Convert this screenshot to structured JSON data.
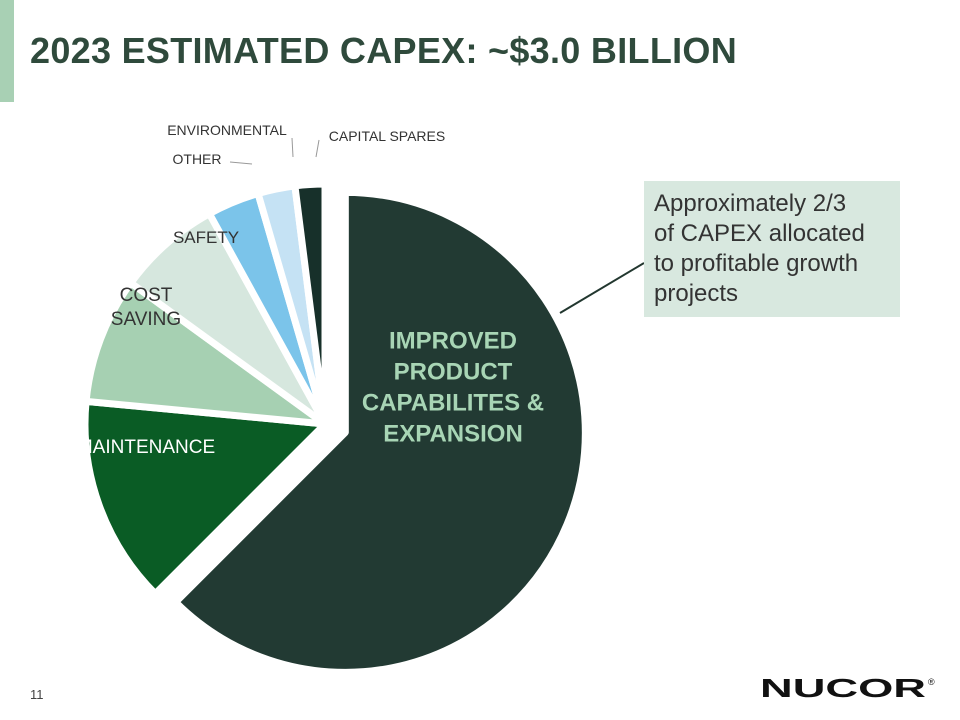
{
  "slide": {
    "title": "2023 ESTIMATED CAPEX:  ~$3.0 BILLION",
    "page_number": "11",
    "brand_name": "NUCOR",
    "brand_mark": "®",
    "colors": {
      "title": "#2f4a3c",
      "accent_bar": "#a8d0b4",
      "callout_bg": "#d8e8df",
      "callout_leader": "#22372f"
    }
  },
  "callout": {
    "lines": [
      "Approximately 2/3",
      "of CAPEX allocated",
      "to profitable growth",
      "projects"
    ]
  },
  "chart_data": {
    "type": "pie",
    "unit": "percent of total CAPEX (estimated)",
    "slices": [
      {
        "label": "IMPROVED PRODUCT CAPABILITES & EXPANSION",
        "label_lines": [
          "IMPROVED",
          "PRODUCT",
          "CAPABILITES &",
          "EXPANSION"
        ],
        "value": 62.5,
        "color": "#223a33",
        "label_color": "#a8d5b5",
        "exploded": true
      },
      {
        "label": "MAINTENANCE",
        "label_lines": [
          "MAINTENANCE"
        ],
        "value": 14.0,
        "color": "#0a5c25",
        "label_color": "#ffffff",
        "exploded": false
      },
      {
        "label": "COST SAVING",
        "label_lines": [
          "COST",
          "SAVING"
        ],
        "value": 8.5,
        "color": "#a6d0b2",
        "label_color": "#333333",
        "exploded": false
      },
      {
        "label": "SAFETY",
        "label_lines": [
          "SAFETY"
        ],
        "value": 7.0,
        "color": "#d6e7de",
        "label_color": "#333333",
        "exploded": false
      },
      {
        "label": "OTHER",
        "label_lines": [
          "OTHER"
        ],
        "value": 3.5,
        "color": "#7bc4ea",
        "label_color": "#333333",
        "exploded": false
      },
      {
        "label": "ENVIRONMENTAL",
        "label_lines": [
          "ENVIRONMENTAL"
        ],
        "value": 2.5,
        "color": "#c5e2f4",
        "label_color": "#333333",
        "exploded": false
      },
      {
        "label": "CAPITAL SPARES",
        "label_lines": [
          "CAPITAL SPARES"
        ],
        "value": 2.0,
        "color": "#17302a",
        "label_color": "#333333",
        "exploded": false
      }
    ]
  }
}
